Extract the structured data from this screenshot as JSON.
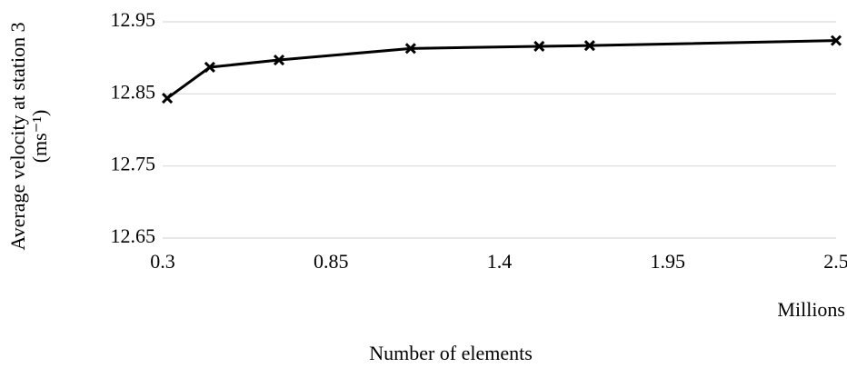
{
  "chart_data": {
    "type": "line",
    "x_label": "Number of elements",
    "x_unit_label": "Millions",
    "y_label": [
      "Average velocity at station 3",
      "(ms⁻¹)"
    ],
    "x": [
      0.315,
      0.454,
      0.68,
      1.11,
      1.53,
      1.695,
      2.5
    ],
    "series": [
      {
        "color": "#000000",
        "marker": "x",
        "values": [
          12.844,
          12.887,
          12.897,
          12.913,
          12.916,
          12.917,
          12.924
        ]
      }
    ],
    "xlim": [
      0.3,
      2.5
    ],
    "xticks": [
      0.3,
      0.85,
      1.4,
      1.95,
      2.5
    ],
    "ylim": [
      12.65,
      12.95
    ],
    "yticks": [
      12.65,
      12.75,
      12.85,
      12.95
    ],
    "grid": true
  }
}
